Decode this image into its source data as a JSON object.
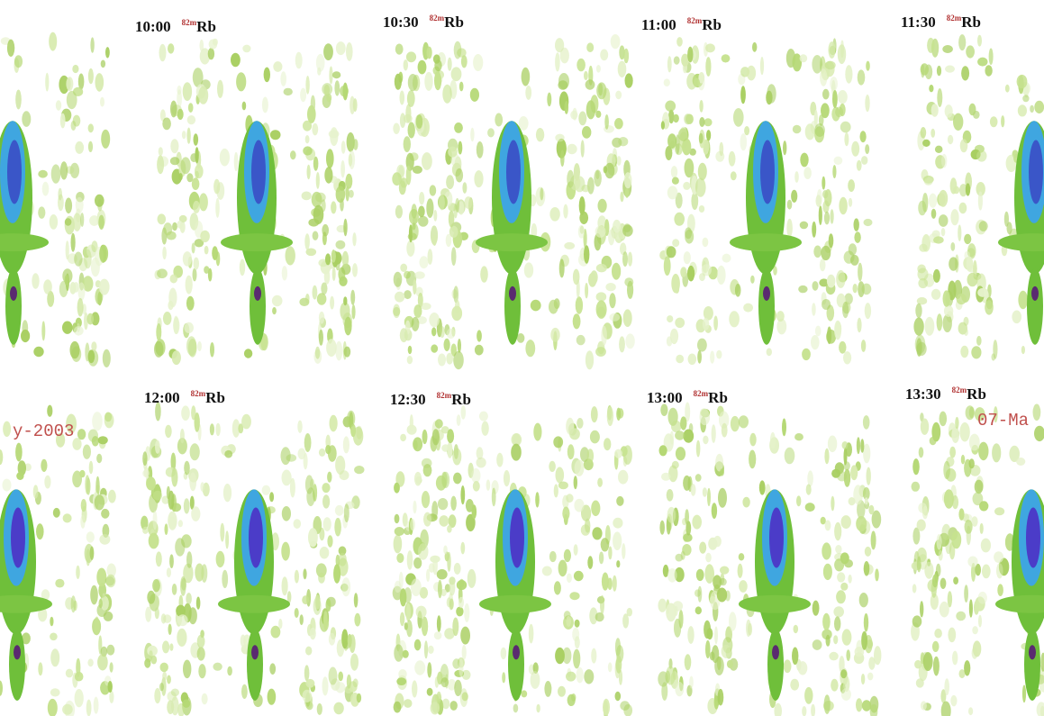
{
  "panels": [
    {
      "time": "10:00",
      "isotope_mass": "82m",
      "isotope_symbol": "Rb"
    },
    {
      "time": "10:30",
      "isotope_mass": "82m",
      "isotope_symbol": "Rb"
    },
    {
      "time": "11:00",
      "isotope_mass": "82m",
      "isotope_symbol": "Rb"
    },
    {
      "time": "11:30",
      "isotope_mass": "82m",
      "isotope_symbol": "Rb"
    },
    {
      "time": "12:00",
      "isotope_mass": "82m",
      "isotope_symbol": "Rb"
    },
    {
      "time": "12:30",
      "isotope_mass": "82m",
      "isotope_symbol": "Rb"
    },
    {
      "time": "13:00",
      "isotope_mass": "82m",
      "isotope_symbol": "Rb"
    },
    {
      "time": "13:30",
      "isotope_mass": "82m",
      "isotope_symbol": "Rb"
    }
  ],
  "overlay_texts": [
    "y-2003",
    "07-Ma"
  ]
}
